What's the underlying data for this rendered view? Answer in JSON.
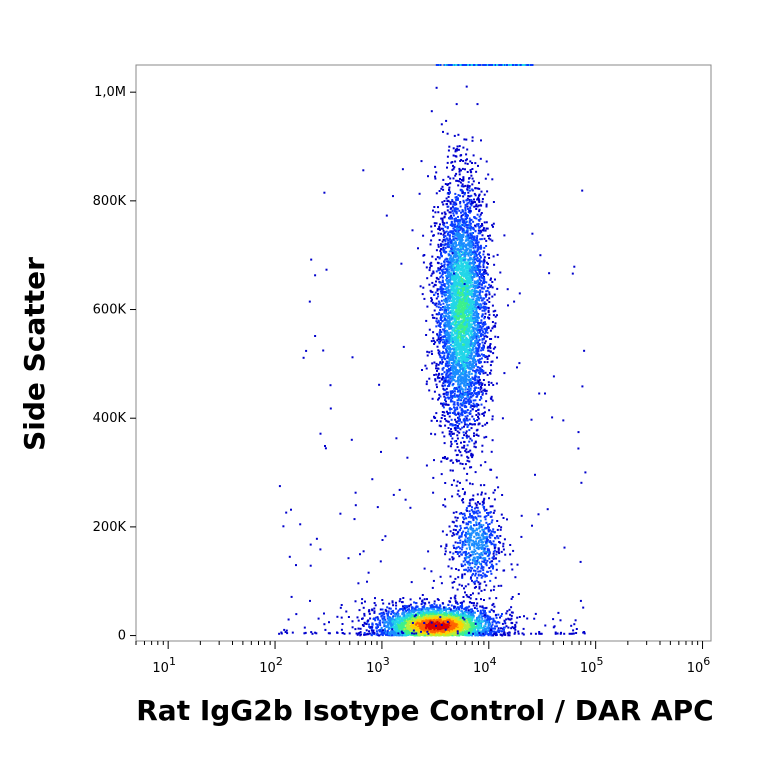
{
  "chart_data": {
    "type": "scatter",
    "style": "flow-cytometry density dot plot",
    "title": "",
    "xlabel": "Rat IgG2b Isotype Control / DAR APC",
    "ylabel": "Side Scatter",
    "x_scale": "log",
    "xlim": [
      5,
      1200000
    ],
    "ylim": [
      -10000,
      1050000
    ],
    "x_ticks": [
      {
        "value": 10,
        "base": "10",
        "exp": "1"
      },
      {
        "value": 100,
        "base": "10",
        "exp": "2"
      },
      {
        "value": 1000,
        "base": "10",
        "exp": "3"
      },
      {
        "value": 10000,
        "base": "10",
        "exp": "4"
      },
      {
        "value": 100000,
        "base": "10",
        "exp": "5"
      },
      {
        "value": 1000000,
        "base": "10",
        "exp": "6"
      }
    ],
    "y_ticks": [
      {
        "value": 0,
        "label": "0"
      },
      {
        "value": 200000,
        "label": "200K"
      },
      {
        "value": 400000,
        "label": "400K"
      },
      {
        "value": 600000,
        "label": "600K"
      },
      {
        "value": 800000,
        "label": "800K"
      },
      {
        "value": 1000000,
        "label": "1,0M"
      }
    ],
    "grid": false,
    "density_colors": [
      "#0000cc",
      "#0a3cff",
      "#1a8cff",
      "#22d6e8",
      "#3cf08c",
      "#b4f03c",
      "#ffd200",
      "#ff6400",
      "#dc0000"
    ],
    "populations": [
      {
        "label": "low SSC cluster",
        "x_center": 3200,
        "y_center": 20000,
        "x_spread_decades": 0.28,
        "y_spread": 18000,
        "events": 3200
      },
      {
        "label": "mid SSC cluster",
        "x_center": 7500,
        "y_center": 170000,
        "x_spread_decades": 0.12,
        "y_spread": 45000,
        "events": 650
      },
      {
        "label": "high SSC cluster",
        "x_center": 5500,
        "y_center": 600000,
        "x_spread_decades": 0.12,
        "y_spread": 115000,
        "events": 4500
      }
    ],
    "saturated_band_y": 1050000
  }
}
